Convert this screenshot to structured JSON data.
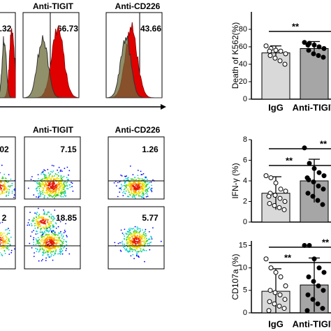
{
  "histogram_panel": {
    "titles": [
      "Anti-TIGIT",
      "Anti-CD226"
    ],
    "percentages": [
      ".32",
      "66.73",
      "43.66"
    ]
  },
  "dotplot_panel": {
    "titles": [
      "Anti-TIGIT",
      "Anti-CD226"
    ],
    "rows": [
      [
        "02",
        "7.15",
        "1.26"
      ],
      [
        "2",
        "18.85",
        "5.77"
      ]
    ]
  },
  "chart_data": [
    {
      "type": "bar",
      "y_label": "Death of  K562(%)",
      "categories": [
        "IgG",
        "Anti-TIGIT"
      ],
      "values": [
        53,
        58
      ],
      "errors": [
        8,
        8
      ],
      "colors": [
        "#d9d9d9",
        "#a6a6a6"
      ],
      "points": [
        [
          61,
          58,
          56,
          55,
          52,
          50,
          47,
          44,
          40,
          55
        ],
        [
          65,
          64,
          62,
          60,
          58,
          56,
          52,
          50,
          48,
          62
        ]
      ],
      "ylim": [
        0,
        100
      ],
      "yticks": [
        0,
        20,
        40,
        60,
        80
      ],
      "significance": [
        "**"
      ]
    },
    {
      "type": "bar",
      "y_label": "IFN-γ (%)",
      "values": [
        2.8,
        4.0
      ],
      "errors": [
        1.6,
        2.1
      ],
      "colors": [
        "#d9d9d9",
        "#a6a6a6"
      ],
      "points": [
        [
          4.5,
          4.3,
          3.8,
          3.2,
          3.0,
          2.8,
          2.6,
          2.3,
          2.0,
          1.8,
          1.6,
          1.4,
          1.2,
          2.5
        ],
        [
          7.2,
          5.7,
          5.2,
          4.8,
          4.5,
          4.1,
          3.9,
          3.5,
          3.2,
          2.8,
          2.5,
          2.1,
          1.7,
          4.3
        ]
      ],
      "ylim": [
        0,
        8
      ],
      "yticks": [
        0,
        2,
        4,
        6,
        8
      ],
      "significance": [
        "**",
        "**"
      ]
    },
    {
      "type": "bar",
      "y_label": "CD107a (%)",
      "categories": [
        "IgG",
        "Anti-TIGIT"
      ],
      "values": [
        4.8,
        6.2
      ],
      "errors": [
        5,
        6
      ],
      "colors": [
        "#d9d9d9",
        "#a6a6a6"
      ],
      "points": [
        [
          12,
          10,
          9,
          8,
          6,
          5,
          4.5,
          4,
          3,
          2.5,
          2,
          1.5,
          1,
          0.5
        ],
        [
          15,
          15,
          12,
          10,
          9,
          8,
          7,
          6,
          5,
          4,
          3,
          2,
          1,
          0.5
        ]
      ],
      "ylim": [
        0,
        16
      ],
      "yticks": [
        0,
        5,
        10,
        15
      ],
      "significance": [
        "**",
        "**"
      ]
    }
  ]
}
